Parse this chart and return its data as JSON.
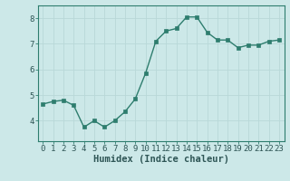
{
  "x": [
    0,
    1,
    2,
    3,
    4,
    5,
    6,
    7,
    8,
    9,
    10,
    11,
    12,
    13,
    14,
    15,
    16,
    17,
    18,
    19,
    20,
    21,
    22,
    23
  ],
  "y": [
    4.65,
    4.75,
    4.8,
    4.6,
    3.75,
    4.0,
    3.75,
    4.0,
    4.35,
    4.85,
    5.85,
    7.1,
    7.5,
    7.6,
    8.05,
    8.05,
    7.45,
    7.15,
    7.15,
    6.85,
    6.95,
    6.95,
    7.1,
    7.15
  ],
  "line_color": "#2e7d6e",
  "bg_color": "#cce8e8",
  "grid_color": "#b8d8d8",
  "xlabel": "Humidex (Indice chaleur)",
  "xlim": [
    -0.5,
    23.5
  ],
  "ylim": [
    3.2,
    8.5
  ],
  "yticks": [
    4,
    5,
    6,
    7,
    8
  ],
  "xticks": [
    0,
    1,
    2,
    3,
    4,
    5,
    6,
    7,
    8,
    9,
    10,
    11,
    12,
    13,
    14,
    15,
    16,
    17,
    18,
    19,
    20,
    21,
    22,
    23
  ],
  "xtick_labels": [
    "0",
    "1",
    "2",
    "3",
    "4",
    "5",
    "6",
    "7",
    "8",
    "9",
    "10",
    "11",
    "12",
    "13",
    "14",
    "15",
    "16",
    "17",
    "18",
    "19",
    "20",
    "21",
    "22",
    "23"
  ],
  "marker": "s",
  "markersize": 2.5,
  "linewidth": 1.0,
  "tick_fontsize": 6.5,
  "xlabel_fontsize": 7.5
}
